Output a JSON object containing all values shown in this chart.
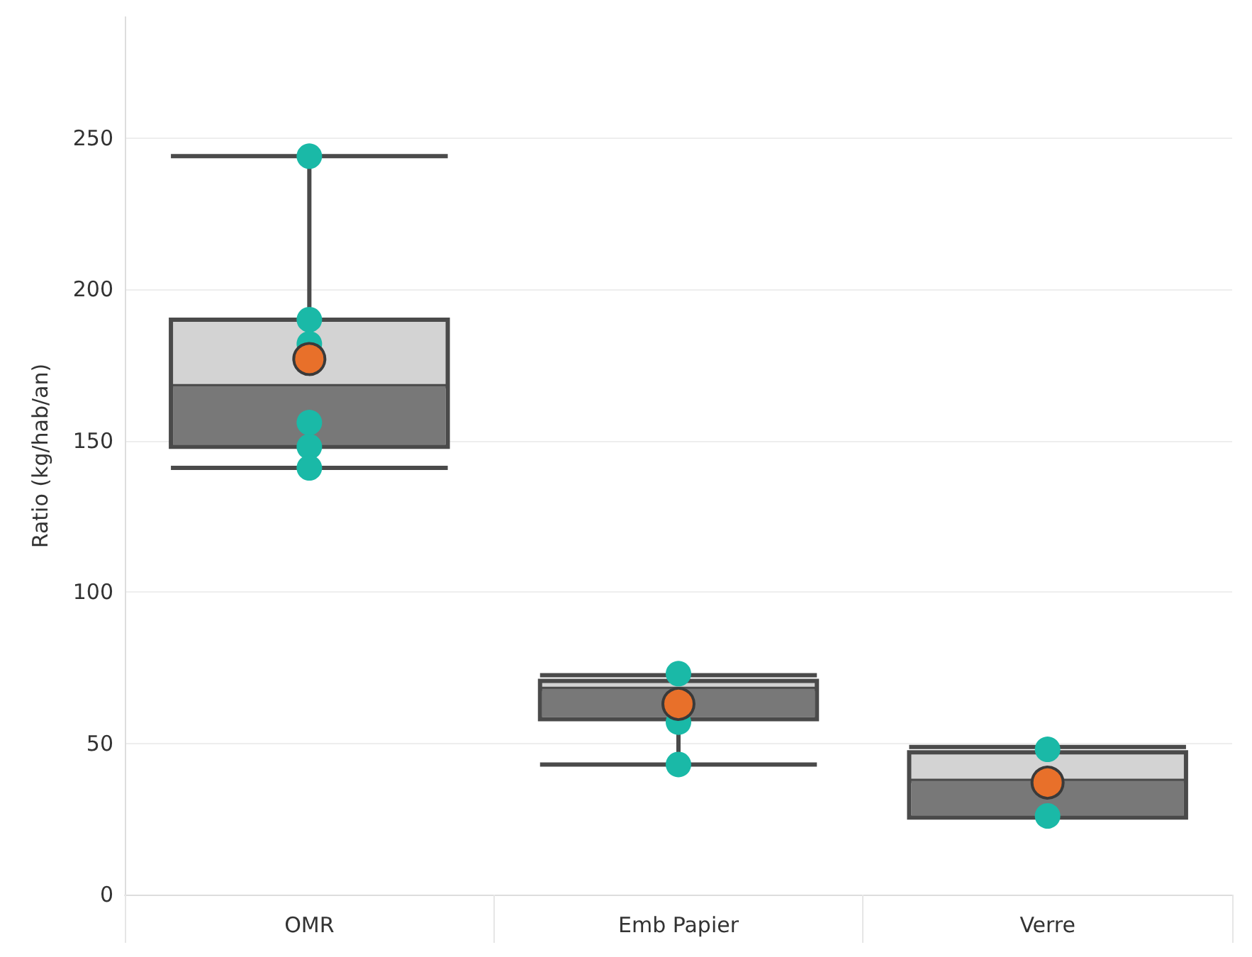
{
  "chart_data": {
    "type": "box",
    "ylabel": "Ratio (kg/hab/an)",
    "categories": [
      "OMR",
      "Emb Papier",
      "Verre"
    ],
    "ylim": [
      0,
      290
    ],
    "yticks": [
      0,
      50,
      100,
      150,
      200,
      250
    ],
    "grid": "y",
    "series": [
      {
        "color": "#787878",
        "boxes": [
          {
            "low": 141,
            "q1": 148,
            "median": 168,
            "q3": 190,
            "high": 244,
            "mean": 177
          },
          {
            "low": 43,
            "q1": 58,
            "median": 68,
            "q3": 70.6,
            "high": 72.5,
            "mean": 63
          },
          {
            "low": 25.5,
            "q1": 25.5,
            "median": 37.6,
            "q3": 47,
            "high": 48.8,
            "mean": 37
          }
        ]
      },
      {
        "type": "scatter",
        "color": "#1ab9a7",
        "x": [
          "OMR",
          "OMR",
          "OMR",
          "OMR",
          "OMR",
          "OMR",
          "Emb Papier",
          "Emb Papier",
          "Emb Papier",
          "Verre",
          "Verre"
        ],
        "values": [
          244,
          190,
          182,
          156,
          148,
          141,
          73,
          57,
          43,
          48,
          26
        ]
      }
    ]
  }
}
